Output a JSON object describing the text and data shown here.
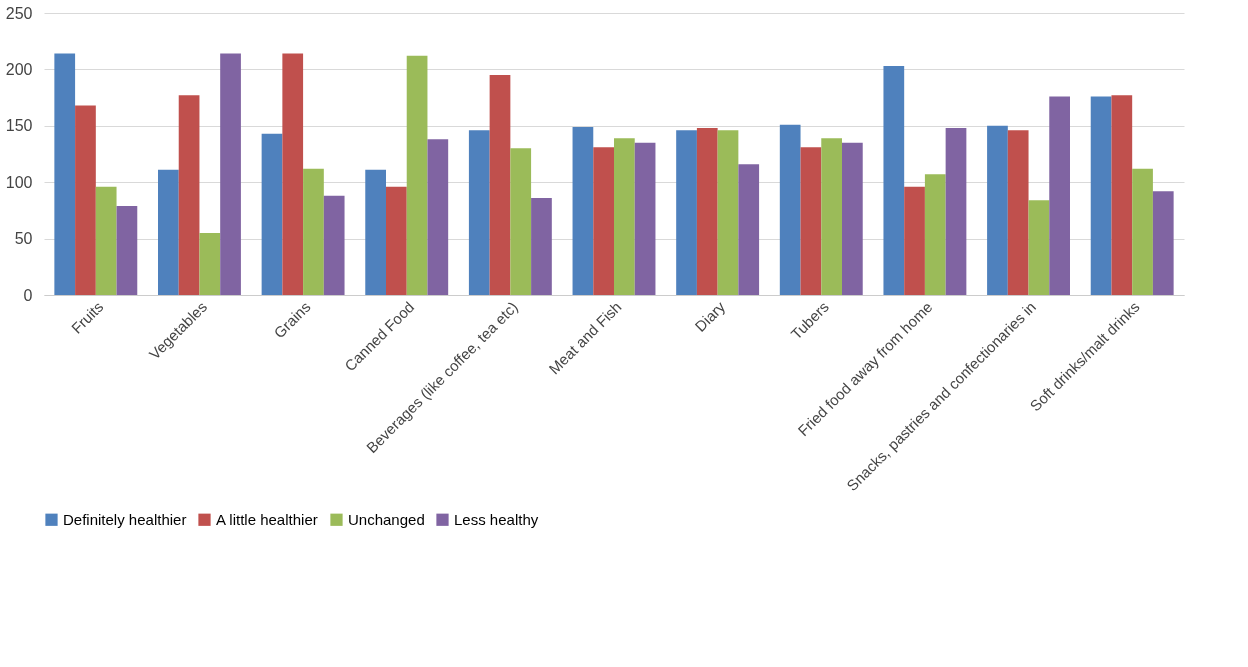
{
  "chart_data": {
    "type": "bar",
    "categories": [
      "Fruits",
      "Vegetables",
      "Grains",
      "Canned Food",
      "Beverages (like coffee, tea etc)",
      "Meat and Fish",
      "Diary",
      "Tubers",
      "Fried food away from home",
      "Snacks, pastries and confectionaries in",
      "Soft drinks/malt drinks"
    ],
    "series": [
      {
        "name": "Definitely healthier",
        "color": "#4f81bd",
        "values": [
          214,
          111,
          143,
          111,
          146,
          149,
          146,
          151,
          203,
          150,
          176
        ]
      },
      {
        "name": "A little healthier",
        "color": "#c0504d",
        "values": [
          168,
          177,
          214,
          96,
          195,
          131,
          148,
          131,
          96,
          146,
          177
        ]
      },
      {
        "name": "Unchanged",
        "color": "#9bbb59",
        "values": [
          96,
          55,
          112,
          212,
          130,
          139,
          146,
          139,
          107,
          84,
          112
        ]
      },
      {
        "name": "Less healthy",
        "color": "#8064a2",
        "values": [
          79,
          214,
          88,
          138,
          86,
          135,
          116,
          135,
          148,
          176,
          92
        ]
      }
    ],
    "ylim": [
      0,
      250
    ],
    "yticks": [
      0,
      50,
      100,
      150,
      200,
      250
    ],
    "grid": "y",
    "legend": "bottom"
  }
}
